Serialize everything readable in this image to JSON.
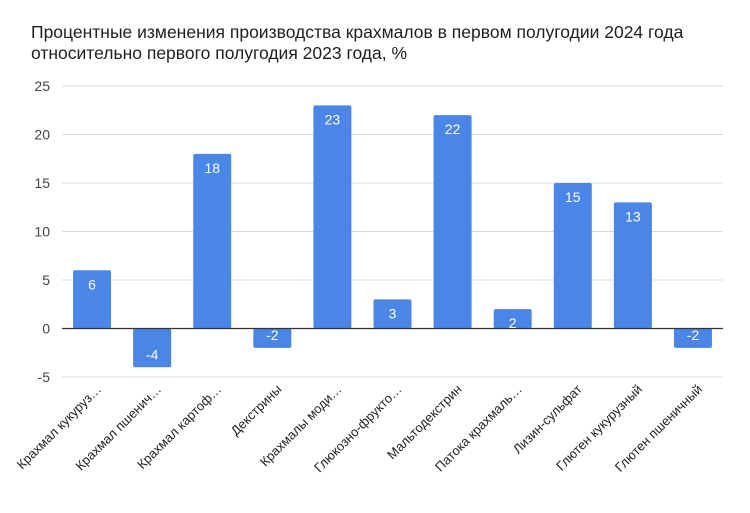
{
  "chart_data": {
    "type": "bar",
    "title": "Процентные изменения производства крахмалов в первом полугодии 2024 года относительно первого полугодия 2023 года, %",
    "xlabel": "",
    "ylabel": "",
    "ylim": [
      -5,
      25
    ],
    "yticks": [
      "25",
      "20",
      "15",
      "10",
      "5",
      "0",
      "-5"
    ],
    "grid": true,
    "legend": "none",
    "bar_color": "#4a86e8",
    "categories": [
      "Крахмал кукуруз…",
      "Крахмал пшенич…",
      "Крахмал картоф…",
      "Декстрины",
      "Крахмалы моди…",
      "Глюкозно-фрукто…",
      "Мальтодекстрин",
      "Патока крахмаль…",
      "Лизин-сульфат",
      "Глютен кукурузный",
      "Глютен пшеничный"
    ],
    "values": [
      6,
      -4,
      18,
      -2,
      23,
      3,
      22,
      2,
      15,
      13,
      -2
    ],
    "value_labels": [
      "6",
      "-4",
      "18",
      "-2",
      "23",
      "3",
      "22",
      "2",
      "15",
      "13",
      "-2"
    ]
  }
}
